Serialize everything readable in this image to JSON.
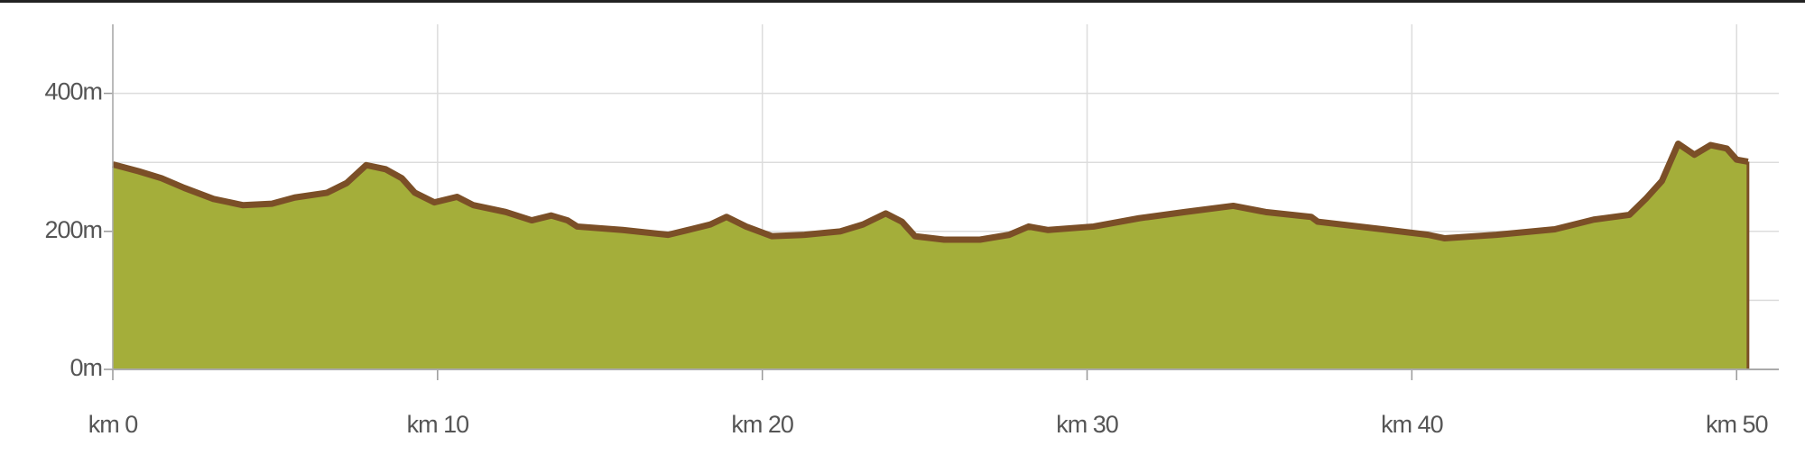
{
  "chart_data": {
    "type": "area",
    "x": [
      0,
      0.8,
      1.5,
      2.2,
      3.1,
      4.0,
      4.9,
      5.6,
      6.6,
      7.2,
      7.8,
      8.4,
      8.9,
      9.3,
      9.9,
      10.6,
      11.1,
      12.1,
      12.9,
      13.5,
      14.0,
      14.3,
      15.7,
      17.1,
      17.8,
      18.4,
      18.9,
      19.5,
      20.3,
      21.3,
      22.4,
      23.1,
      23.8,
      24.3,
      24.7,
      25.6,
      26.7,
      27.6,
      28.2,
      28.8,
      30.2,
      31.6,
      33.0,
      34.5,
      35.5,
      36.9,
      37.1,
      39.1,
      40.5,
      41.0,
      42.6,
      44.4,
      45.6,
      46.7,
      47.2,
      47.7,
      48.2,
      48.7,
      49.2,
      49.7,
      50.0,
      50.35
    ],
    "values": [
      297,
      287,
      277,
      263,
      247,
      238,
      240,
      249,
      256,
      270,
      296,
      290,
      277,
      256,
      242,
      250,
      238,
      228,
      216,
      223,
      216,
      207,
      202,
      195,
      203,
      210,
      221,
      207,
      193,
      195,
      200,
      210,
      226,
      214,
      193,
      188,
      188,
      195,
      207,
      202,
      207,
      219,
      228,
      237,
      228,
      221,
      214,
      203,
      195,
      190,
      195,
      203,
      217,
      224,
      247,
      273,
      327,
      311,
      325,
      320,
      304,
      301
    ],
    "color": "#a4ae3a",
    "line_color": "#7b4f27",
    "xlim": [
      0,
      51.3
    ],
    "xticks": [
      {
        "value": 0,
        "label": "km 0"
      },
      {
        "value": 10,
        "label": "km 10"
      },
      {
        "value": 20,
        "label": "km 20"
      },
      {
        "value": 30,
        "label": "km 30"
      },
      {
        "value": 40,
        "label": "km 40"
      },
      {
        "value": 50,
        "label": "km 50"
      }
    ],
    "ylim": [
      0,
      500
    ],
    "yticks": [
      {
        "value": 0,
        "label": "0m"
      },
      {
        "value": 200,
        "label": "200m"
      },
      {
        "value": 400,
        "label": "400m"
      }
    ],
    "minor_yticks": [
      100,
      300
    ],
    "grid": true
  }
}
